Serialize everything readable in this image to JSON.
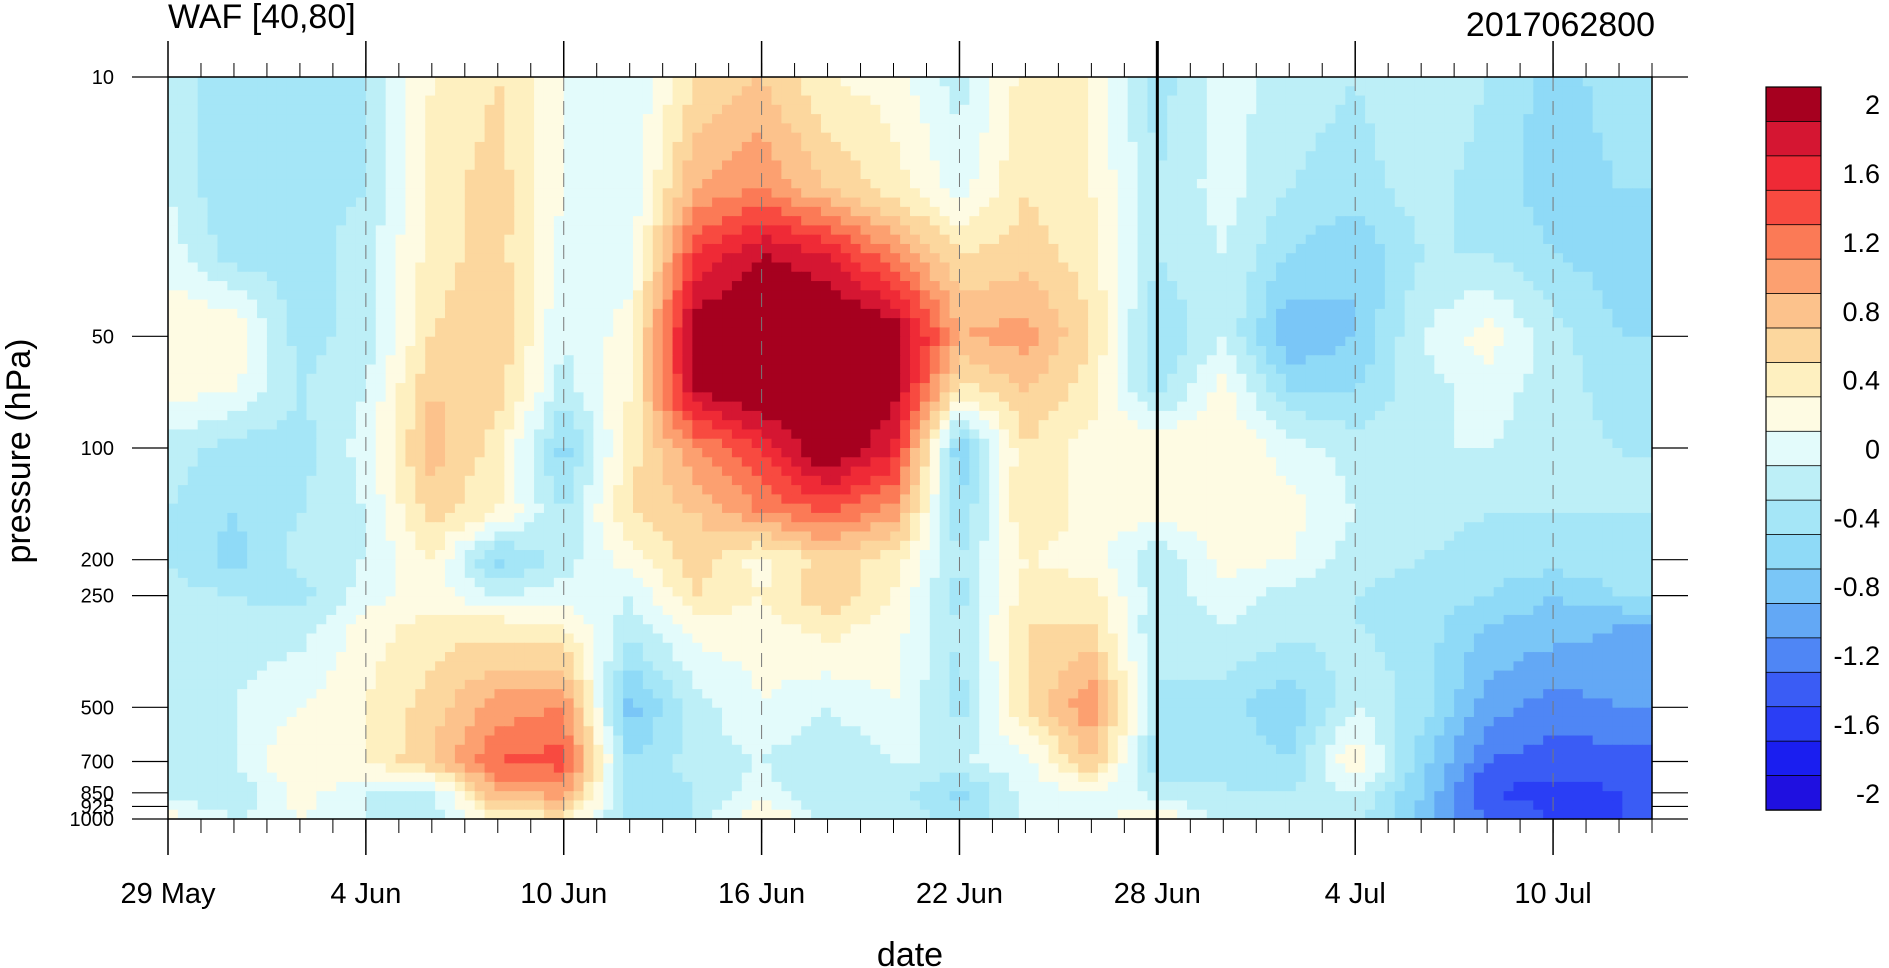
{
  "chart_data": {
    "type": "heatmap",
    "subtype": "filled contour (time-pressure section)",
    "title": "WAF [40,80]",
    "title_right": "2017062800",
    "xlabel": "date",
    "ylabel": "pressure (hPa)",
    "y_scale": "log",
    "y_reversed": true,
    "ylim": [
      1000,
      10
    ],
    "x_ticks": [
      "29 May",
      "4 Jun",
      "10 Jun",
      "16 Jun",
      "22 Jun",
      "28 Jun",
      "4 Jul",
      "10 Jul"
    ],
    "x_start": "2017-05-29",
    "x_end": "2017-07-13",
    "y_ticks": [
      10,
      50,
      100,
      200,
      250,
      500,
      700,
      850,
      925,
      1000
    ],
    "marker_line": "2017-06-28",
    "grid": "dashed vertical lines at x ticks",
    "colorbar": {
      "labels": [
        "2",
        "1.6",
        "1.2",
        "0.8",
        "0.4",
        "0",
        "-0.4",
        "-0.8",
        "-1.2",
        "-1.6",
        "-2"
      ],
      "levels": [
        -2,
        -1.8,
        -1.6,
        -1.4,
        -1.2,
        -1,
        -0.8,
        -0.6,
        -0.4,
        -0.2,
        0,
        0.2,
        0.4,
        0.6,
        0.8,
        1,
        1.2,
        1.4,
        1.6,
        1.8,
        2
      ],
      "colors": [
        "#1f10e0",
        "#1a1ef0",
        "#2a3ef5",
        "#3a5cf5",
        "#4f86f5",
        "#63a8f5",
        "#7ac6f7",
        "#8fdaf7",
        "#a5e6f7",
        "#bdeff7",
        "#e3fbfb",
        "#fefbe3",
        "#fef0c0",
        "#fcd79e",
        "#fcc28c",
        "#fca070",
        "#fb7a56",
        "#f84a40",
        "#ef2a36",
        "#d51632",
        "#a6001f"
      ]
    },
    "days": [
      "2017-05-29",
      "2017-05-31",
      "2017-06-02",
      "2017-06-04",
      "2017-06-06",
      "2017-06-08",
      "2017-06-10",
      "2017-06-12",
      "2017-06-14",
      "2017-06-16",
      "2017-06-18",
      "2017-06-20",
      "2017-06-22",
      "2017-06-24",
      "2017-06-26",
      "2017-06-28",
      "2017-06-30",
      "2017-07-02",
      "2017-07-04",
      "2017-07-06",
      "2017-07-08",
      "2017-07-10",
      "2017-07-12"
    ],
    "levels_hPa": [
      10,
      20,
      30,
      50,
      70,
      100,
      150,
      200,
      250,
      300,
      500,
      700,
      850,
      1000
    ],
    "values": [
      [
        -0.25,
        -0.6,
        -0.5,
        -0.4,
        0.2,
        0.4,
        0.0,
        -0.2,
        0.4,
        0.6,
        0.2,
        0.1,
        -0.3,
        0.3,
        0.2,
        -0.5,
        -0.1,
        -0.3,
        -0.4,
        -0.2,
        -0.4,
        -0.7,
        -0.5
      ],
      [
        -0.2,
        -0.6,
        -0.5,
        -0.4,
        0.3,
        0.5,
        0.0,
        -0.2,
        0.8,
        1.0,
        0.6,
        0.3,
        -0.1,
        0.4,
        0.2,
        -0.4,
        -0.1,
        -0.4,
        -0.5,
        -0.3,
        -0.5,
        -0.7,
        -0.6
      ],
      [
        -0.1,
        -0.5,
        -0.5,
        -0.3,
        0.3,
        0.5,
        -0.1,
        -0.1,
        1.4,
        1.8,
        1.6,
        1.0,
        0.4,
        0.5,
        0.3,
        -0.4,
        -0.2,
        -0.6,
        -0.8,
        -0.4,
        -0.4,
        -0.6,
        -0.7
      ],
      [
        0.2,
        0.2,
        -0.5,
        -0.3,
        0.4,
        0.6,
        -0.2,
        0.1,
        2.0,
        2.2,
        2.2,
        2.0,
        0.8,
        0.9,
        0.4,
        -0.6,
        -0.2,
        -1.0,
        -0.8,
        -0.2,
        0.1,
        -0.3,
        -0.6
      ],
      [
        0.1,
        0.0,
        -0.4,
        -0.2,
        0.6,
        0.5,
        -0.3,
        0.2,
        1.8,
        2.1,
        2.2,
        1.9,
        0.3,
        0.6,
        0.3,
        -0.5,
        0.1,
        -0.6,
        -0.6,
        -0.3,
        -0.1,
        -0.3,
        -0.5
      ],
      [
        -0.3,
        -0.5,
        -0.5,
        -0.1,
        0.7,
        0.3,
        -0.7,
        0.3,
        1.0,
        1.4,
        2.1,
        1.6,
        -0.8,
        0.4,
        0.1,
        0.2,
        0.2,
        -0.1,
        -0.3,
        -0.2,
        -0.2,
        -0.3,
        -0.4
      ],
      [
        -0.4,
        -0.6,
        -0.4,
        -0.2,
        0.5,
        0.2,
        -0.4,
        0.4,
        0.6,
        1.0,
        1.2,
        0.9,
        -0.6,
        0.4,
        0.1,
        0.1,
        0.1,
        0.1,
        -0.2,
        -0.3,
        -0.4,
        -0.4,
        -0.4
      ],
      [
        -0.4,
        -0.7,
        -0.3,
        -0.2,
        0.2,
        -0.7,
        -0.3,
        0.1,
        0.5,
        0.1,
        0.5,
        0.3,
        -0.4,
        0.2,
        0.1,
        -0.4,
        0.1,
        0.0,
        -0.3,
        -0.4,
        -0.5,
        -0.5,
        -0.5
      ],
      [
        -0.3,
        -0.4,
        -0.5,
        -0.1,
        0.1,
        -0.2,
        -0.1,
        -0.2,
        0.4,
        0.2,
        0.6,
        0.2,
        -0.5,
        0.3,
        0.3,
        -0.3,
        -0.1,
        -0.3,
        -0.4,
        -0.5,
        -0.6,
        -0.8,
        -0.6
      ],
      [
        -0.2,
        -0.3,
        -0.3,
        0.1,
        0.3,
        0.3,
        0.2,
        -0.3,
        0.1,
        0.1,
        0.3,
        0.1,
        -0.4,
        0.4,
        0.4,
        -0.4,
        -0.2,
        -0.3,
        -0.4,
        -0.5,
        -0.8,
        -0.9,
        -1.0
      ],
      [
        -0.3,
        -0.2,
        0.0,
        0.2,
        0.5,
        0.9,
        1.0,
        -0.9,
        -0.3,
        0.0,
        -0.2,
        0.0,
        -0.5,
        0.4,
        1.0,
        -0.4,
        -0.5,
        -0.8,
        -0.2,
        -0.5,
        -1.1,
        -1.3,
        -1.2
      ],
      [
        -0.3,
        -0.2,
        0.2,
        0.2,
        0.6,
        1.2,
        1.3,
        -0.6,
        -0.3,
        -0.2,
        -0.4,
        -0.2,
        -0.2,
        -0.1,
        0.6,
        -0.6,
        -0.4,
        -0.6,
        0.2,
        -0.7,
        -1.4,
        -1.5,
        -1.5
      ],
      [
        -0.3,
        -0.4,
        0.1,
        -0.2,
        -0.3,
        0.8,
        0.9,
        -0.6,
        -0.4,
        -0.1,
        -0.4,
        -0.3,
        -0.7,
        -0.1,
        0.0,
        -0.3,
        -0.4,
        -0.4,
        -0.2,
        -0.8,
        -1.6,
        -1.7,
        -1.6
      ],
      [
        0.1,
        -0.2,
        0.0,
        -0.2,
        -0.3,
        0.3,
        0.3,
        -0.5,
        -0.4,
        0.3,
        -0.3,
        -0.2,
        -0.5,
        -0.2,
        -0.1,
        0.2,
        -0.3,
        -0.2,
        -0.3,
        -0.9,
        -1.4,
        -1.6,
        -1.6
      ]
    ]
  }
}
